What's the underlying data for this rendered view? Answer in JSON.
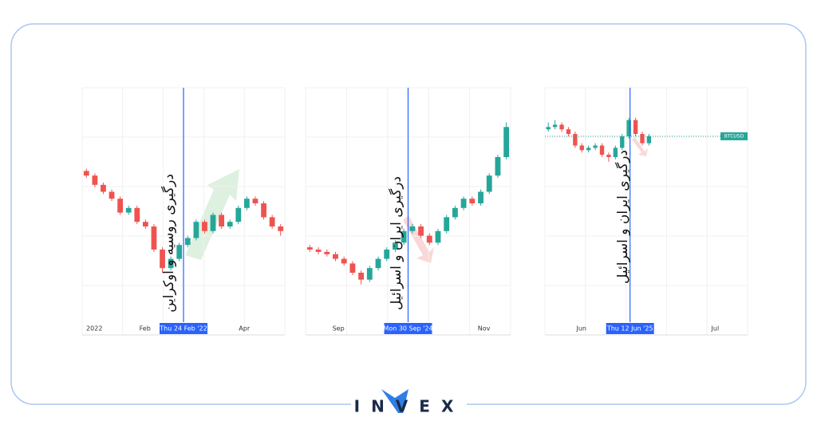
{
  "chart_data": [
    {
      "type": "candlestick",
      "up_color": "#26a69a",
      "down_color": "#ef5350",
      "ylim": [
        0,
        100
      ],
      "open": [
        64,
        62,
        58,
        55,
        52,
        46,
        48,
        42,
        40,
        30,
        22,
        26,
        32,
        35,
        42,
        38,
        45,
        40,
        42,
        48,
        52,
        50,
        44,
        40
      ],
      "high": [
        65,
        63,
        59,
        56,
        53,
        49,
        49,
        43,
        41,
        31,
        27,
        33,
        36,
        43,
        43,
        46,
        46,
        43,
        49,
        53,
        53,
        51,
        45,
        41
      ],
      "low": [
        61,
        57,
        54,
        51,
        45,
        45,
        41,
        39,
        29,
        20,
        21,
        25,
        31,
        34,
        37,
        37,
        39,
        39,
        41,
        47,
        49,
        43,
        39,
        36
      ],
      "close": [
        62,
        58,
        55,
        52,
        46,
        48,
        42,
        40,
        30,
        22,
        26,
        32,
        35,
        42,
        38,
        45,
        40,
        42,
        48,
        52,
        50,
        44,
        40,
        38
      ],
      "x_labels": [
        "2022",
        "Feb",
        "Apr"
      ],
      "event_label": "Thu 24 Feb '22",
      "annotation": "درگیری روسیه و اوکراین"
    },
    {
      "type": "candlestick",
      "up_color": "#26a69a",
      "down_color": "#ef5350",
      "ylim": [
        0,
        100
      ],
      "open": [
        31,
        30,
        29,
        28,
        26,
        24,
        20,
        17,
        22,
        26,
        30,
        33,
        38,
        40,
        36,
        33,
        38,
        44,
        48,
        52,
        50,
        55,
        62,
        70
      ],
      "high": [
        32,
        31,
        30,
        29,
        27,
        25,
        21,
        23,
        27,
        31,
        34,
        39,
        41,
        41,
        37,
        39,
        45,
        49,
        53,
        53,
        56,
        63,
        71,
        85
      ],
      "low": [
        29,
        28,
        27,
        25,
        23,
        19,
        15,
        16,
        21,
        25,
        29,
        32,
        37,
        35,
        32,
        32,
        37,
        43,
        47,
        49,
        49,
        54,
        61,
        69
      ],
      "close": [
        30,
        29,
        28,
        26,
        24,
        20,
        17,
        22,
        26,
        30,
        33,
        38,
        40,
        36,
        33,
        38,
        44,
        48,
        52,
        50,
        55,
        62,
        70,
        83
      ],
      "x_labels": [
        "Sep",
        "Nov"
      ],
      "event_label": "Mon 30 Sep '24",
      "annotation": "درگیری ایران و اسرائیل"
    },
    {
      "type": "candlestick",
      "up_color": "#26a69a",
      "down_color": "#ef5350",
      "ylim": [
        0,
        100
      ],
      "open": [
        82,
        83,
        84,
        82,
        80,
        75,
        73,
        74,
        75,
        71,
        70,
        74,
        79,
        86,
        80,
        76
      ],
      "high": [
        85,
        86,
        85,
        83,
        81,
        76,
        75,
        76,
        76,
        72,
        75,
        80,
        87,
        87,
        81,
        80
      ],
      "low": [
        81,
        82,
        81,
        79,
        74,
        72,
        72,
        73,
        70,
        68,
        69,
        73,
        78,
        79,
        75,
        75
      ],
      "close": [
        83,
        84,
        82,
        80,
        75,
        73,
        74,
        75,
        71,
        70,
        74,
        79,
        86,
        80,
        76,
        79
      ],
      "x_labels": [
        "Jun",
        "Jul"
      ],
      "event_label": "Thu 12 Jun '25",
      "annotation": "درگیری ایران و اسرائیل",
      "symbol": "BTCUSD"
    }
  ],
  "logo": "INVEX"
}
